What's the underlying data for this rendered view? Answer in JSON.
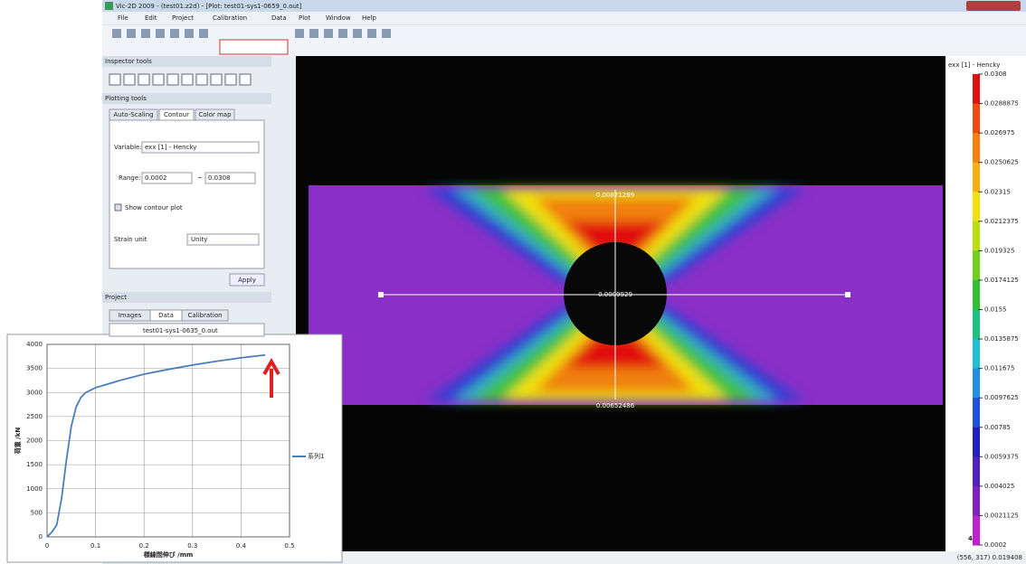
{
  "window": {
    "title": "Vic-2D 2009 - (test01.z2d) - [Plot: test01-sys1-0659_0.out]",
    "menu": [
      "File",
      "Edit",
      "Project",
      "Calibration",
      "Data",
      "Plot",
      "Window",
      "Help"
    ]
  },
  "inspector_tools": {
    "title": "Inspector tools"
  },
  "plotting_tools": {
    "title": "Plotting tools",
    "tabs": [
      "Auto-Scaling",
      "Contour",
      "Color map"
    ],
    "variable_label": "Variable:",
    "variable_value": "exx [1] - Hencky",
    "range_label": "Range:",
    "range_min": "0.0002",
    "range_sep": "~",
    "range_max": "0.0308",
    "show_contour": "Show contour plot",
    "strain_unit_label": "Strain unit",
    "strain_unit_value": "Unity",
    "apply": "Apply"
  },
  "project": {
    "title": "Project",
    "tabs": [
      "Images",
      "Data",
      "Calibration"
    ],
    "files": [
      "test01-sys1-0635_0.out"
    ]
  },
  "viewport": {
    "labels": [
      "0.00871289",
      "0.0009929",
      "0.00652486"
    ]
  },
  "colorbar": {
    "title": "exx [1] - Hencky",
    "labels": [
      "0.0308",
      "0.0288875",
      "0.026975",
      "0.0250625",
      "0.02315",
      "0.0212375",
      "0.019325",
      "0.0174125",
      "0.0155",
      "0.0135875",
      "0.011675",
      "0.0097625",
      "0.00785",
      "0.0059375",
      "0.004025",
      "0.0021125",
      "0.0002"
    ],
    "colors": [
      "#e01010",
      "#f04a10",
      "#f57f10",
      "#f5b010",
      "#f0e010",
      "#b8e010",
      "#70d020",
      "#30c030",
      "#20c080",
      "#20c0d0",
      "#2090e0",
      "#2050e0",
      "#2020c0",
      "#5020c0",
      "#8020c0",
      "#c020d0"
    ]
  },
  "status": {
    "frame": "4",
    "coords": "(556, 317) 0.019408"
  },
  "chart_data": {
    "type": "line",
    "xlabel": "標線間伸び /mm",
    "ylabel": "荷重 /kN",
    "x": [
      0,
      0.01,
      0.02,
      0.03,
      0.04,
      0.05,
      0.06,
      0.07,
      0.08,
      0.1,
      0.15,
      0.2,
      0.25,
      0.3,
      0.35,
      0.4,
      0.45
    ],
    "series": [
      {
        "name": "系列1",
        "color": "#4a7ebb",
        "values": [
          0,
          100,
          250,
          800,
          1600,
          2300,
          2700,
          2900,
          3000,
          3100,
          3250,
          3380,
          3480,
          3570,
          3650,
          3720,
          3780
        ]
      }
    ],
    "xlim": [
      0,
      0.5
    ],
    "ylim": [
      0,
      4000
    ],
    "xticks": [
      0,
      0.1,
      0.2,
      0.3,
      0.4,
      0.5
    ],
    "yticks": [
      0,
      500,
      1000,
      1500,
      2000,
      2500,
      3000,
      3500,
      4000
    ],
    "grid": true,
    "legend": "right"
  }
}
